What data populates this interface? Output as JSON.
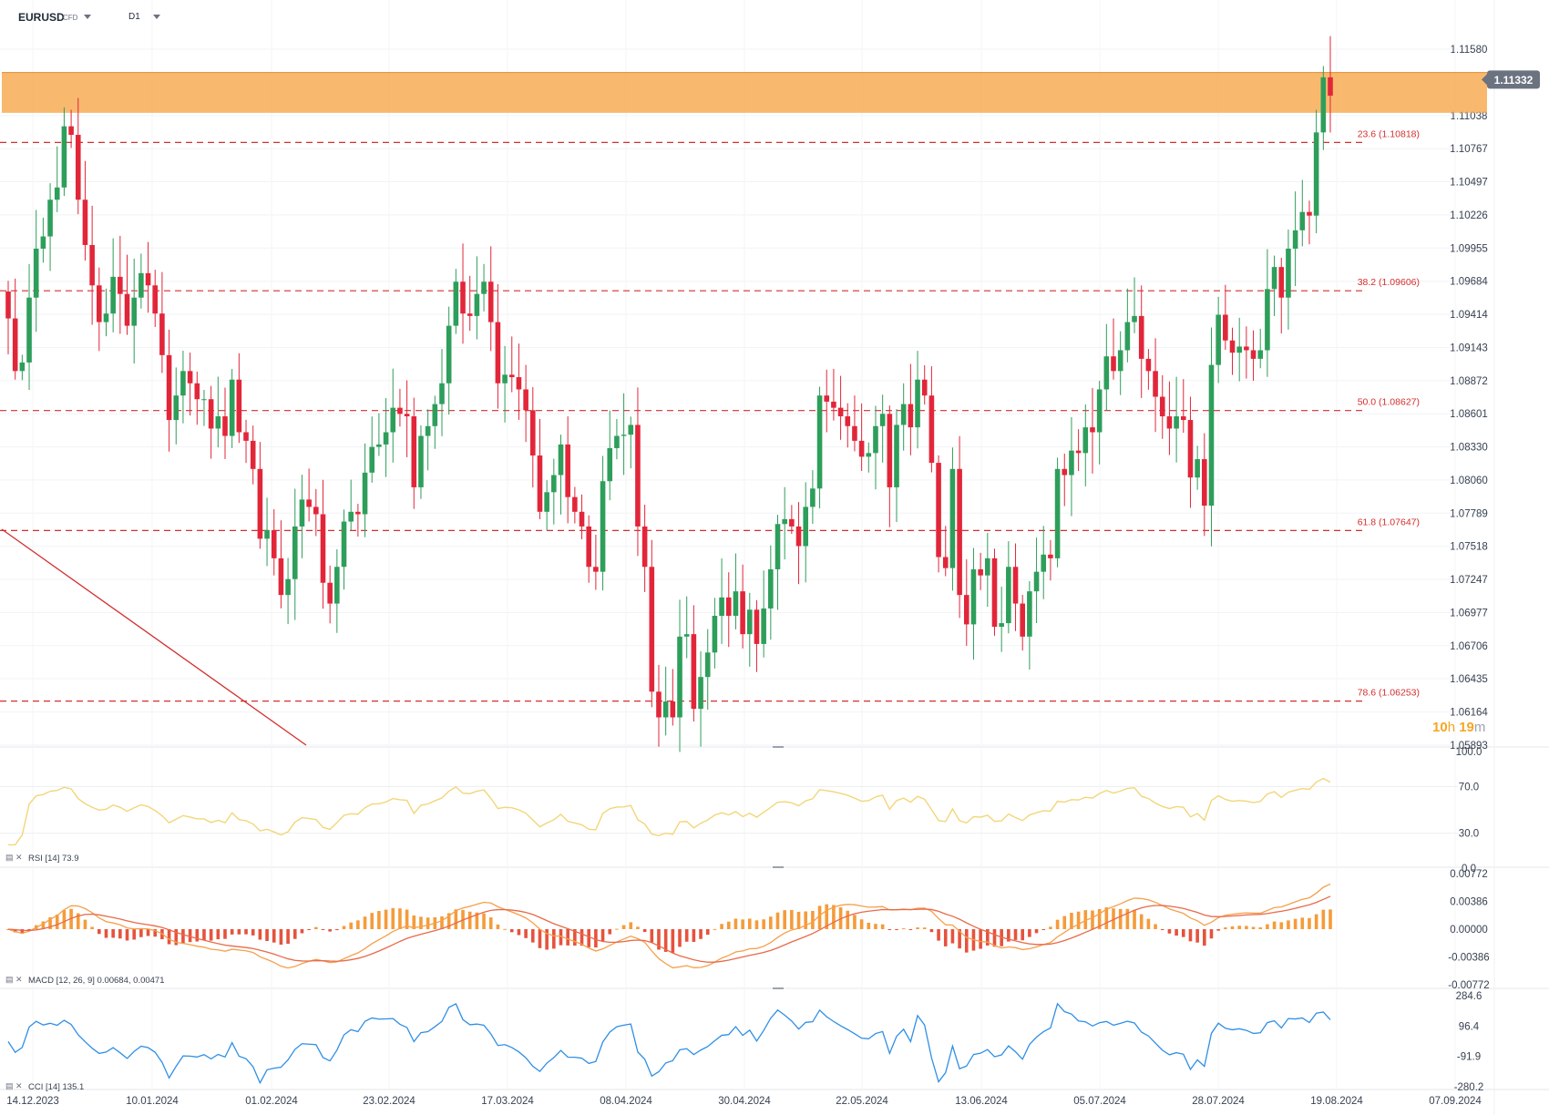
{
  "header": {
    "symbol": "EURUSD",
    "symbol_type": "CFD",
    "timeframe": "D1"
  },
  "countdown": {
    "hours": "10",
    "h": "h",
    "minutes": "19",
    "m": "m"
  },
  "colors": {
    "bull": "#2e9e5b",
    "bear": "#e2263a",
    "zone": "#f7a94f",
    "fib": "#d32f2f",
    "rsi": "#f2d67a",
    "cci": "#2f8fe6",
    "macd_line": "#f5a04a",
    "macd_signal": "#e86a4a",
    "hist_pos": "#f59b3a",
    "hist_neg": "#e5533d",
    "price_badge": "#6b7280"
  },
  "chart_data": {
    "type": "candlestick",
    "main": {
      "y_ticks": [
        "1.11580",
        "1.11038",
        "1.10767",
        "1.10497",
        "1.10226",
        "1.09955",
        "1.09684",
        "1.09414",
        "1.09143",
        "1.08872",
        "1.08601",
        "1.08330",
        "1.08060",
        "1.07789",
        "1.07518",
        "1.07247",
        "1.06977",
        "1.06706",
        "1.06435",
        "1.06164",
        "1.05893"
      ],
      "ylim": [
        1.05893,
        1.1158
      ],
      "current_price": "1.11332",
      "resistance_zone": [
        1.1106,
        1.1133
      ],
      "fib_levels": [
        {
          "label": "23.6 (1.10818)",
          "value": 1.10818
        },
        {
          "label": "38.2 (1.09606)",
          "value": 1.09606
        },
        {
          "label": "50.0 (1.08627)",
          "value": 1.08627
        },
        {
          "label": "61.8 (1.07647)",
          "value": 1.07647
        },
        {
          "label": "78.6 (1.06253)",
          "value": 1.06253
        }
      ],
      "x_labels": [
        "14.12.2023",
        "10.01.2024",
        "01.02.2024",
        "23.02.2024",
        "17.03.2024",
        "08.04.2024",
        "30.04.2024",
        "22.05.2024",
        "13.06.2024",
        "05.07.2024",
        "28.07.2024",
        "19.08.2024",
        "07.09.2024"
      ],
      "closes": [
        1.0938,
        1.0895,
        1.0902,
        1.0955,
        1.0995,
        1.1005,
        1.1035,
        1.1045,
        1.1095,
        1.1088,
        1.1035,
        1.0998,
        1.0965,
        1.0935,
        1.0942,
        1.0972,
        1.0958,
        1.0932,
        1.0955,
        1.0975,
        1.0965,
        1.0942,
        1.0908,
        1.0855,
        1.0875,
        1.0895,
        1.0885,
        1.0872,
        1.0872,
        1.0848,
        1.0858,
        1.0842,
        1.0888,
        1.0845,
        1.0838,
        1.0815,
        1.0758,
        1.0765,
        1.0742,
        1.0712,
        1.0725,
        1.0768,
        1.079,
        1.0784,
        1.0778,
        1.0722,
        1.0705,
        1.0735,
        1.0772,
        1.078,
        1.0778,
        1.0812,
        1.0833,
        1.0835,
        1.0845,
        1.0865,
        1.086,
        1.0858,
        1.08,
        1.0842,
        1.085,
        1.0868,
        1.0885,
        1.0932,
        1.0968,
        1.0942,
        1.094,
        1.0958,
        1.0968,
        1.0935,
        1.0885,
        1.0892,
        1.089,
        1.088,
        1.0863,
        1.0826,
        1.078,
        1.0796,
        1.081,
        1.0835,
        1.0792,
        1.078,
        1.0768,
        1.0735,
        1.0731,
        1.0805,
        1.0832,
        1.0842,
        1.0843,
        1.0851,
        1.0768,
        1.0735,
        1.0633,
        1.0612,
        1.0625,
        1.0612,
        1.0678,
        1.068,
        1.0619,
        1.0645,
        1.0665,
        1.0695,
        1.071,
        1.0695,
        1.0715,
        1.068,
        1.07,
        1.0672,
        1.0701,
        1.0733,
        1.077,
        1.0774,
        1.0768,
        1.0752,
        1.0784,
        1.0799,
        1.0875,
        1.087,
        1.0865,
        1.0858,
        1.085,
        1.0838,
        1.0825,
        1.0828,
        1.085,
        1.086,
        1.08,
        1.0851,
        1.0868,
        1.0849,
        1.0888,
        1.0875,
        1.082,
        1.0743,
        1.0734,
        1.0815,
        1.0712,
        1.0688,
        1.0733,
        1.0728,
        1.0742,
        1.0686,
        1.0689,
        1.0735,
        1.0705,
        1.0678,
        1.0715,
        1.0731,
        1.0745,
        1.0742,
        1.0815,
        1.081,
        1.083,
        1.0828,
        1.0849,
        1.0845,
        1.088,
        1.0907,
        1.0895,
        1.0912,
        1.0935,
        1.094,
        1.0905,
        1.0895,
        1.0874,
        1.0858,
        1.0848,
        1.0858,
        1.0855,
        1.0808,
        1.0823,
        1.0785,
        1.09,
        1.0941,
        1.092,
        1.091,
        1.0915,
        1.0912,
        1.0905,
        1.0912,
        1.0962,
        1.098,
        1.0955,
        1.0995,
        1.101,
        1.1025,
        1.1022,
        1.109,
        1.1135,
        1.112
      ]
    },
    "rsi": {
      "label": "RSI",
      "params": "[14]",
      "value": "73.9",
      "y_ticks": [
        "100.0",
        "70.0",
        "30.0",
        "0.0"
      ],
      "ylim": [
        0,
        100
      ],
      "levels": [
        70,
        30
      ]
    },
    "macd": {
      "label": "MACD",
      "params": "[12, 26, 9]",
      "value1": "0.00684,",
      "value2": "0.00471",
      "y_ticks": [
        "0.00772",
        "0.00386",
        "0.00000",
        "-0.00386",
        "-0.00772"
      ],
      "ylim": [
        -0.00772,
        0.00772
      ]
    },
    "cci": {
      "label": "CCI",
      "params": "[14]",
      "value": "135.1",
      "y_ticks": [
        "284.6",
        "96.4",
        "-91.9",
        "-280.2"
      ],
      "ylim": [
        -280.2,
        284.6
      ]
    }
  }
}
